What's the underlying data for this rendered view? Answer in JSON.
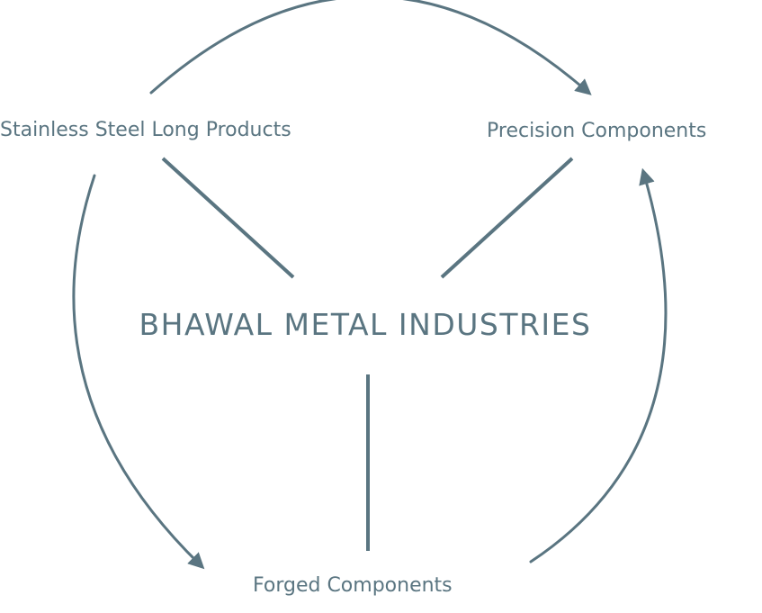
{
  "diagram": {
    "center": "BHAWAL METAL INDUSTRIES",
    "nodes": {
      "stainless": "Stainless Steel Long Products",
      "precision": "Precision Components",
      "forged": "Forged Components"
    },
    "edges": [
      {
        "from": "Stainless Steel Long Products",
        "to": "Precision Components"
      },
      {
        "from": "Stainless Steel Long Products",
        "to": "Forged Components"
      },
      {
        "from": "Forged Components",
        "to": "Precision Components"
      }
    ],
    "colors": {
      "line": "#5a7581",
      "text": "#5a7581"
    }
  }
}
